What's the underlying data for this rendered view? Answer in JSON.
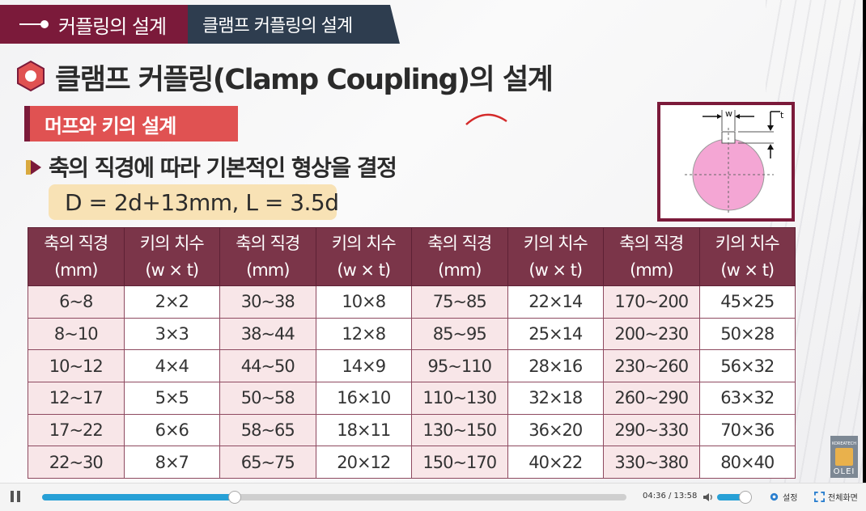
{
  "header": {
    "main_title": "커플링의 설계",
    "sub_title": "클램프 커플링의 설계"
  },
  "page_title": "클램프 커플링(Clamp Coupling)의 설계",
  "section_label": "머프와 키의 설계",
  "bullet_text": "축의 직경에 따라 기본적인 형상을 결정",
  "formula": "D = 2d+13mm, L = 3.5d",
  "diagram": {
    "w_label": "w",
    "t_label": "t"
  },
  "table": {
    "headers": [
      {
        "line1": "축의 직경",
        "line2": "(mm)"
      },
      {
        "line1": "키의 치수",
        "line2": "(w × t)"
      },
      {
        "line1": "축의 직경",
        "line2": "(mm)"
      },
      {
        "line1": "키의 치수",
        "line2": "(w × t)"
      },
      {
        "line1": "축의 직경",
        "line2": "(mm)"
      },
      {
        "line1": "키의 치수",
        "line2": "(w × t)"
      },
      {
        "line1": "축의 직경",
        "line2": "(mm)"
      },
      {
        "line1": "키의 치수",
        "line2": "(w × t)"
      }
    ],
    "rows": [
      [
        "6~8",
        "2×2",
        "30~38",
        "10×8",
        "75~85",
        "22×14",
        "170~200",
        "45×25"
      ],
      [
        "8~10",
        "3×3",
        "38~44",
        "12×8",
        "85~95",
        "25×14",
        "200~230",
        "50×28"
      ],
      [
        "10~12",
        "4×4",
        "44~50",
        "14×9",
        "95~110",
        "28×16",
        "230~260",
        "56×32"
      ],
      [
        "12~17",
        "5×5",
        "50~58",
        "16×10",
        "110~130",
        "32×18",
        "260~290",
        "63×32"
      ],
      [
        "17~22",
        "6×6",
        "58~65",
        "18×11",
        "130~150",
        "36×20",
        "290~330",
        "70×36"
      ],
      [
        "22~30",
        "8×7",
        "65~75",
        "20×12",
        "150~170",
        "40×22",
        "330~380",
        "80×40"
      ]
    ]
  },
  "logo": {
    "top_text": "KOREATECH",
    "name": "OLEI"
  },
  "player": {
    "time": "04:36 / 13:58",
    "progress_fraction": 0.33,
    "volume_fraction": 0.7,
    "settings_label": "설정",
    "fullscreen_label": "전체화면"
  },
  "colors": {
    "brand": "#7b1a3a",
    "header_sub": "#2e3d4f",
    "section": "#e05252",
    "formula_bg": "#f8e2b5",
    "table_header": "#7b3549",
    "progress": "#27a0d6"
  }
}
